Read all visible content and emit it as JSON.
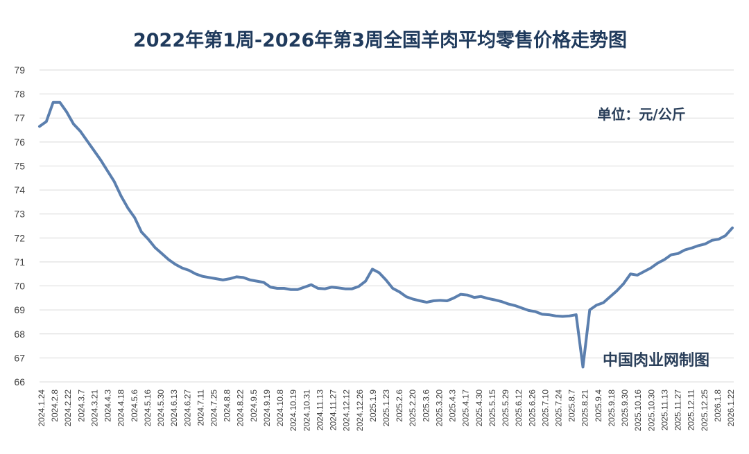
{
  "chart_data": {
    "type": "line",
    "title": "2022年第1周-2026年第3周全国羊肉平均零售价格走势图",
    "unit_label": "单位：元/公斤",
    "source_label": "中国肉业网制图",
    "ylim": [
      66,
      79
    ],
    "y_ticks": [
      "79",
      "78",
      "77",
      "76",
      "75",
      "74",
      "73",
      "72",
      "71",
      "70",
      "69",
      "68",
      "67",
      "66"
    ],
    "grid": true,
    "legend": "none",
    "colors": {
      "line": "#5b7fae",
      "title": "#1f3a5c",
      "text": "#2a3f5a",
      "grid": "#d9d9d9"
    },
    "x_tick_labels": [
      "2024.1.24",
      "2024.2.8",
      "2024.2.22",
      "2024.3.7",
      "2024.3.21",
      "2024.4.3",
      "2024.4.18",
      "2024.5.6",
      "2024.5.16",
      "2024.5.30",
      "2024.6.13",
      "2024.6.27",
      "2024.7.11",
      "2024.7.25",
      "2024.8.8",
      "2024.8.22",
      "2024.9.5",
      "2024.9.19",
      "2024.10.8",
      "2024.10.19",
      "2024.10.31",
      "2024.11.13",
      "2024.11.27",
      "2024.12.12",
      "2024.12.26",
      "2025.1.9",
      "2025.1.23",
      "2025.2.6",
      "2025.2.20",
      "2025.3.6",
      "2025.3.20",
      "2025.4.3",
      "2025.4.17",
      "2025.4.30",
      "2025.5.15",
      "2025.5.29",
      "2025.6.12",
      "2025.6.26",
      "2025.7.10",
      "2025.7.24",
      "2025.8.7",
      "2025.8.21",
      "2025.9.4",
      "2025.9.18",
      "2025.9.30",
      "2025.10.16",
      "2025.10.30",
      "2025.11.13",
      "2025.11.27",
      "2025.12.11",
      "2025.12.25",
      "2026.1.8",
      "2026.1.22"
    ],
    "series": [
      {
        "values": [
          76.65,
          76.85,
          77.65,
          77.65,
          77.25,
          76.75,
          76.45,
          76.05,
          75.65,
          75.25,
          74.8,
          74.35,
          73.75,
          73.25,
          72.85,
          72.25,
          71.95,
          71.6,
          71.35,
          71.1,
          70.9,
          70.75,
          70.65,
          70.5,
          70.4,
          70.35,
          70.3,
          70.25,
          70.3,
          70.38,
          70.35,
          70.25,
          70.2,
          70.15,
          69.95,
          69.9,
          69.9,
          69.85,
          69.85,
          69.95,
          70.05,
          69.9,
          69.88,
          69.95,
          69.92,
          69.88,
          69.88,
          69.98,
          70.2,
          70.7,
          70.55,
          70.25,
          69.9,
          69.75,
          69.55,
          69.45,
          69.38,
          69.32,
          69.38,
          69.4,
          69.38,
          69.5,
          69.65,
          69.62,
          69.52,
          69.56,
          69.48,
          69.42,
          69.35,
          69.25,
          69.18,
          69.08,
          68.98,
          68.93,
          68.82,
          68.8,
          68.75,
          68.73,
          68.75,
          68.8,
          66.62,
          69.0,
          69.2,
          69.3,
          69.55,
          69.8,
          70.1,
          70.5,
          70.45,
          70.6,
          70.75,
          70.95,
          71.1,
          71.3,
          71.35,
          71.5,
          71.58,
          71.68,
          71.75,
          71.9,
          71.95,
          72.1,
          72.42
        ]
      }
    ]
  }
}
